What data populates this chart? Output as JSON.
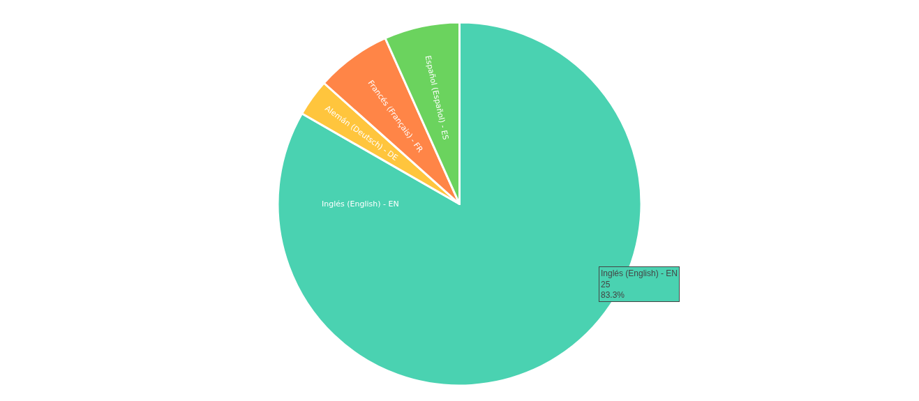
{
  "chart_data": {
    "type": "pie",
    "categories": [
      "Inglés (English) - EN",
      "Alemán (Deutsch) - DE",
      "Francés (Français) - FR",
      "Español (Español) - ES"
    ],
    "values": [
      83.3,
      3.3,
      6.7,
      6.7
    ],
    "colors": [
      "#4ad2b1",
      "#ffc53d",
      "#ff8547",
      "#6bd35e"
    ],
    "annotations": [
      "Inglés (English) - EN\n25\n83.3%"
    ],
    "legend": false
  }
}
